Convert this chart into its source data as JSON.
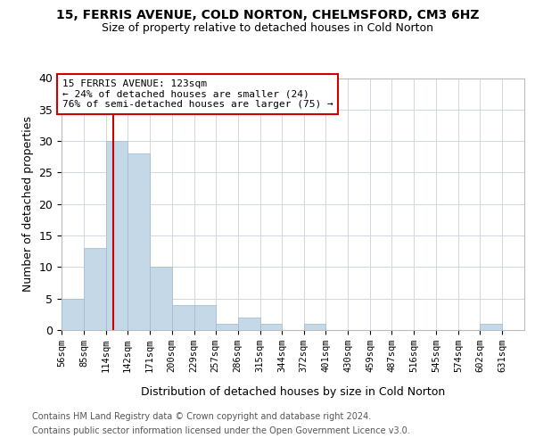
{
  "title1": "15, FERRIS AVENUE, COLD NORTON, CHELMSFORD, CM3 6HZ",
  "title2": "Size of property relative to detached houses in Cold Norton",
  "xlabel": "Distribution of detached houses by size in Cold Norton",
  "ylabel": "Number of detached properties",
  "bins": [
    56,
    85,
    114,
    142,
    171,
    200,
    229,
    257,
    286,
    315,
    344,
    372,
    401,
    430,
    459,
    487,
    516,
    545,
    574,
    602,
    631
  ],
  "counts": [
    5,
    13,
    30,
    28,
    10,
    4,
    4,
    1,
    2,
    1,
    0,
    1,
    0,
    0,
    0,
    0,
    0,
    0,
    0,
    1,
    0
  ],
  "bar_color": "#c5d8e8",
  "bar_edge_color": "#a0b8cc",
  "grid_color": "#d0d8e0",
  "property_size": 123,
  "annotation_title": "15 FERRIS AVENUE: 123sqm",
  "annotation_line1": "← 24% of detached houses are smaller (24)",
  "annotation_line2": "76% of semi-detached houses are larger (75) →",
  "annotation_box_color": "#ffffff",
  "annotation_border_color": "#cc0000",
  "vertical_line_color": "#cc0000",
  "footer_line1": "Contains HM Land Registry data © Crown copyright and database right 2024.",
  "footer_line2": "Contains public sector information licensed under the Open Government Licence v3.0.",
  "ylim": [
    0,
    40
  ],
  "yticks": [
    0,
    5,
    10,
    15,
    20,
    25,
    30,
    35,
    40
  ]
}
